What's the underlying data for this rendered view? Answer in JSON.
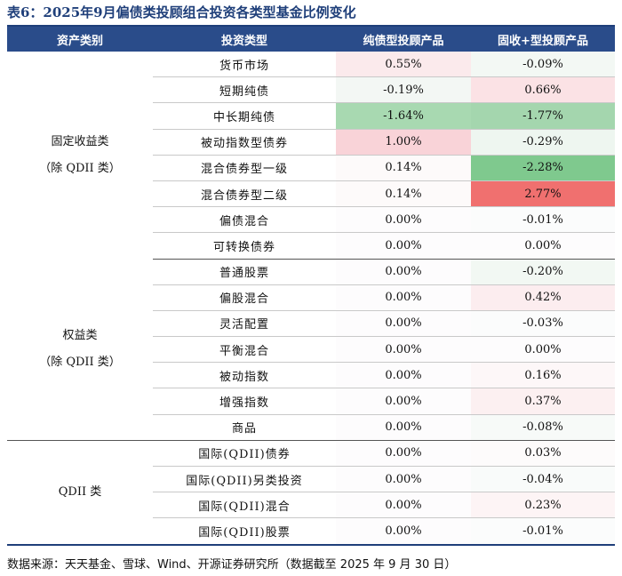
{
  "title": "表6：2025年9月偏债类投顾组合投资各类型基金比例变化",
  "header": {
    "col1": "资产类别",
    "col2": "投资类型",
    "col3": "纯债型投顾产品",
    "col4": "固收+型投顾产品"
  },
  "groups": {
    "fixed_income": {
      "line1": "固定收益类",
      "line2": "（除 QDII 类）"
    },
    "equity": {
      "line1": "权益类",
      "line2": "（除 QDII 类）"
    },
    "qdii": {
      "line1": "QDII 类"
    }
  },
  "rows": [
    {
      "type": "货币市场",
      "pure": "0.55%",
      "pure_color": "#fbeaec",
      "plus": "-0.09%",
      "plus_color": "#f3f8f4"
    },
    {
      "type": "短期纯债",
      "pure": "-0.19%",
      "pure_color": "#f3f7f4",
      "plus": "0.66%",
      "plus_color": "#fbe2e5"
    },
    {
      "type": "中长期纯债",
      "pure": "-1.64%",
      "pure_color": "#a8d9b1",
      "plus": "-1.77%",
      "plus_color": "#a4d6ae"
    },
    {
      "type": "被动指数型债券",
      "pure": "1.00%",
      "pure_color": "#f9d3d8",
      "plus": "-0.29%",
      "plus_color": "#eef6f0"
    },
    {
      "type": "混合债券型一级",
      "pure": "0.14%",
      "pure_color": "#fdfafa",
      "plus": "-2.28%",
      "plus_color": "#7fc98e"
    },
    {
      "type": "混合债券型二级",
      "pure": "0.14%",
      "pure_color": "#fdfafa",
      "plus": "2.77%",
      "plus_color": "#f0706f"
    },
    {
      "type": "偏债混合",
      "pure": "0.00%",
      "pure_color": "#fdfcfd",
      "plus": "-0.01%",
      "plus_color": "#fbfcfc"
    },
    {
      "type": "可转换债券",
      "pure": "0.00%",
      "pure_color": "#fdfcfd",
      "plus": "0.00%",
      "plus_color": "#fdfcfd"
    },
    {
      "type": "普通股票",
      "pure": "0.00%",
      "pure_color": "#fdfcfd",
      "plus": "-0.20%",
      "plus_color": "#f2f8f3"
    },
    {
      "type": "偏股混合",
      "pure": "0.00%",
      "pure_color": "#fdfcfd",
      "plus": "0.42%",
      "plus_color": "#fcedef"
    },
    {
      "type": "灵活配置",
      "pure": "0.00%",
      "pure_color": "#fdfcfd",
      "plus": "-0.03%",
      "plus_color": "#fbfcfc"
    },
    {
      "type": "平衡混合",
      "pure": "0.00%",
      "pure_color": "#fdfcfd",
      "plus": "0.00%",
      "plus_color": "#fdfcfd"
    },
    {
      "type": "被动指数",
      "pure": "0.00%",
      "pure_color": "#fdfcfd",
      "plus": "0.16%",
      "plus_color": "#fdf7f8"
    },
    {
      "type": "增强指数",
      "pure": "0.00%",
      "pure_color": "#fdfcfd",
      "plus": "0.37%",
      "plus_color": "#fcf0f1"
    },
    {
      "type": "商品",
      "pure": "0.00%",
      "pure_color": "#fdfcfd",
      "plus": "-0.08%",
      "plus_color": "#f7faf8"
    },
    {
      "type": "国际(QDII)债券",
      "pure": "0.00%",
      "pure_color": "#fdfcfd",
      "plus": "0.03%",
      "plus_color": "#fdfbfb"
    },
    {
      "type": "国际(QDII)另类投资",
      "pure": "0.00%",
      "pure_color": "#fdfcfd",
      "plus": "-0.04%",
      "plus_color": "#f9fbfa"
    },
    {
      "type": "国际(QDII)混合",
      "pure": "0.00%",
      "pure_color": "#fdfcfd",
      "plus": "0.23%",
      "plus_color": "#fdf4f5"
    },
    {
      "type": "国际(QDII)股票",
      "pure": "0.00%",
      "pure_color": "#fdfcfd",
      "plus": "-0.01%",
      "plus_color": "#fbfcfc"
    }
  ],
  "source": "数据来源：天天基金、雪球、Wind、开源证券研究所（数据截至 2025 年 9 月 30 日）"
}
